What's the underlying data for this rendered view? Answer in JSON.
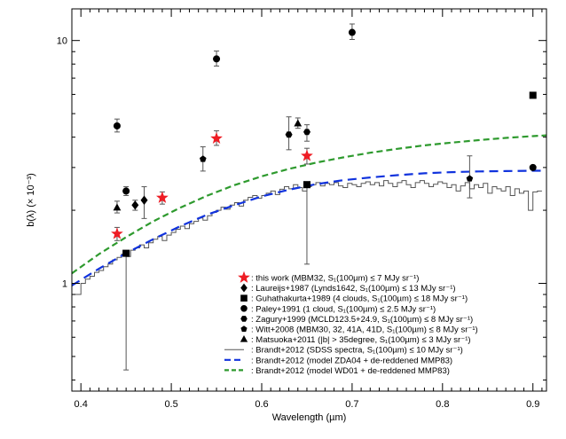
{
  "chart_data": {
    "type": "scatter",
    "xlabel": "Wavelength (µm)",
    "ylabel": "b(λ) (× 10⁻³)",
    "xlim": [
      0.39,
      0.915
    ],
    "ylim": [
      0.36,
      13.5
    ],
    "y_scale": "log",
    "x_ticks": [
      0.4,
      0.5,
      0.6,
      0.7,
      0.8,
      0.9
    ],
    "y_ticks": [
      1,
      10
    ],
    "legend_position": "bottom-right",
    "colors": {
      "red": "#ee1c24",
      "blue": "#1133dd",
      "green": "#2e9a2e",
      "black": "#000000",
      "gray": "#555555"
    },
    "series": [
      {
        "name": "this work",
        "legend": ": this work (MBM32, S₁(100µm) ≤ 7 MJy sr⁻¹)",
        "marker": "star",
        "color": "#ee1c24",
        "points": [
          {
            "x": 0.44,
            "y": 1.6,
            "err": [
              1.5,
              1.7
            ]
          },
          {
            "x": 0.49,
            "y": 2.25,
            "err": [
              2.12,
              2.38
            ]
          },
          {
            "x": 0.55,
            "y": 3.95,
            "err": [
              3.7,
              4.25
            ]
          },
          {
            "x": 0.65,
            "y": 3.35,
            "err": [
              3.1,
              3.6
            ]
          }
        ]
      },
      {
        "name": "Laureijs+1987",
        "legend": ": Laureijs+1987 (Lynds1642, S₁(100µm) ≤ 13 MJy sr⁻¹)",
        "marker": "diamond",
        "color": "#000000",
        "points": [
          {
            "x": 0.46,
            "y": 2.1,
            "err": [
              2.0,
              2.2
            ]
          },
          {
            "x": 0.47,
            "y": 2.2,
            "err": [
              1.85,
              2.5
            ]
          }
        ]
      },
      {
        "name": "Guhathakurta+1989",
        "legend": ": Guhathakurta+1989 (4 clouds, S₁(100µm) ≤ 18 MJy sr⁻¹)",
        "marker": "square",
        "color": "#000000",
        "points": [
          {
            "x": 0.45,
            "y": 1.33,
            "err": [
              0.44,
              1.33
            ]
          },
          {
            "x": 0.65,
            "y": 2.55,
            "err": [
              1.2,
              2.55
            ]
          },
          {
            "x": 0.9,
            "y": 5.95,
            "err": null
          }
        ]
      },
      {
        "name": "Paley+1991",
        "legend": ": Paley+1991 (1 cloud, S₁(100µm) ≤ 2.5 MJy sr⁻¹)",
        "marker": "circle",
        "color": "#000000",
        "points": [
          {
            "x": 0.44,
            "y": 4.45,
            "err": [
              4.2,
              4.75
            ]
          },
          {
            "x": 0.45,
            "y": 2.4,
            "err": [
              2.3,
              2.5
            ]
          },
          {
            "x": 0.55,
            "y": 8.4,
            "err": [
              7.85,
              9.05
            ]
          },
          {
            "x": 0.7,
            "y": 10.8,
            "err": [
              10.1,
              11.7
            ]
          },
          {
            "x": 0.9,
            "y": 3.0,
            "err": null
          }
        ]
      },
      {
        "name": "Zagury+1999",
        "legend": ": Zagury+1999 (MCLD123.5+24.9, S₁(100µm) ≤ 8 MJy sr⁻¹)",
        "marker": "hexagon",
        "color": "#000000",
        "points": [
          {
            "x": 0.63,
            "y": 4.1,
            "err": [
              3.55,
              4.85
            ]
          },
          {
            "x": 0.65,
            "y": 4.2,
            "err": [
              3.85,
              4.5
            ]
          }
        ]
      },
      {
        "name": "Witt+2008",
        "legend": ": Witt+2008 (MBM30, 32, 41A, 41D, S₁(100µm) ≤ 8 MJy sr⁻¹)",
        "marker": "pentagon",
        "color": "#000000",
        "points": [
          {
            "x": 0.535,
            "y": 3.25,
            "err": [
              2.9,
              3.65
            ]
          },
          {
            "x": 0.83,
            "y": 2.7,
            "err": [
              2.25,
              3.35
            ]
          }
        ]
      },
      {
        "name": "Matsuoka+2011",
        "legend": ": Matsuoka+2011 (|b| > 35degree, S₁(100µm) ≤ 3 MJy sr⁻¹)",
        "marker": "triangle",
        "color": "#000000",
        "points": [
          {
            "x": 0.44,
            "y": 2.05,
            "err": [
              1.95,
              2.18
            ]
          },
          {
            "x": 0.64,
            "y": 4.55,
            "err": [
              4.35,
              4.8
            ]
          }
        ]
      }
    ],
    "lines": [
      {
        "name": "Brandt+2012 SDSS",
        "legend": ": Brandt+2012 (SDSS spectra, S₁(100µm) ≤ 10 MJy sr⁻¹)",
        "style": "step",
        "color": "#555555",
        "x": [
          0.39,
          0.4,
          0.405,
          0.41,
          0.415,
          0.42,
          0.425,
          0.43,
          0.435,
          0.44,
          0.445,
          0.45,
          0.455,
          0.46,
          0.465,
          0.47,
          0.475,
          0.48,
          0.485,
          0.49,
          0.495,
          0.5,
          0.505,
          0.51,
          0.515,
          0.52,
          0.525,
          0.53,
          0.535,
          0.54,
          0.545,
          0.55,
          0.555,
          0.56,
          0.565,
          0.57,
          0.575,
          0.58,
          0.585,
          0.59,
          0.595,
          0.6,
          0.605,
          0.61,
          0.615,
          0.62,
          0.625,
          0.63,
          0.635,
          0.64,
          0.645,
          0.65,
          0.655,
          0.66,
          0.665,
          0.67,
          0.675,
          0.68,
          0.685,
          0.69,
          0.695,
          0.7,
          0.705,
          0.71,
          0.715,
          0.72,
          0.725,
          0.73,
          0.735,
          0.74,
          0.745,
          0.75,
          0.755,
          0.76,
          0.765,
          0.77,
          0.775,
          0.78,
          0.785,
          0.79,
          0.795,
          0.8,
          0.805,
          0.81,
          0.815,
          0.82,
          0.825,
          0.83,
          0.835,
          0.84,
          0.845,
          0.85,
          0.855,
          0.86,
          0.865,
          0.87,
          0.875,
          0.88,
          0.885,
          0.89,
          0.895,
          0.9,
          0.905
        ],
        "y": [
          0.9,
          1.0,
          1.04,
          1.07,
          1.11,
          1.13,
          1.17,
          1.2,
          1.25,
          1.28,
          1.32,
          1.29,
          1.37,
          1.4,
          1.44,
          1.4,
          1.47,
          1.52,
          1.56,
          1.5,
          1.58,
          1.62,
          1.67,
          1.72,
          1.68,
          1.76,
          1.8,
          1.86,
          1.82,
          1.9,
          1.96,
          2.0,
          2.06,
          2.02,
          2.1,
          2.15,
          2.08,
          2.2,
          2.26,
          2.3,
          2.24,
          2.3,
          2.35,
          2.4,
          2.32,
          2.44,
          2.5,
          2.45,
          2.55,
          2.48,
          2.4,
          2.5,
          2.55,
          2.6,
          2.52,
          2.58,
          2.55,
          2.6,
          2.52,
          2.48,
          2.58,
          2.55,
          2.5,
          2.58,
          2.62,
          2.55,
          2.6,
          2.52,
          2.65,
          2.58,
          2.5,
          2.6,
          2.65,
          2.55,
          2.48,
          2.6,
          2.65,
          2.58,
          2.5,
          2.56,
          2.62,
          2.58,
          2.48,
          2.55,
          2.4,
          2.52,
          2.6,
          2.45,
          2.55,
          2.48,
          2.58,
          2.35,
          2.5,
          2.45,
          2.4,
          2.5,
          2.3,
          2.45,
          2.35,
          2.4,
          2.0,
          2.38,
          2.4
        ]
      },
      {
        "name": "Brandt+2012 ZDA04",
        "legend": ": Brandt+2012 (model ZDA04 + de-reddened MMP83)",
        "style": "long-dash",
        "color": "#1133dd",
        "x": [
          0.39,
          0.42,
          0.45,
          0.48,
          0.51,
          0.54,
          0.57,
          0.6,
          0.63,
          0.66,
          0.69,
          0.72,
          0.75,
          0.78,
          0.81,
          0.84,
          0.87,
          0.9,
          0.915
        ],
        "y": [
          0.98,
          1.15,
          1.33,
          1.52,
          1.72,
          1.92,
          2.1,
          2.28,
          2.43,
          2.56,
          2.66,
          2.73,
          2.79,
          2.84,
          2.87,
          2.89,
          2.9,
          2.91,
          2.91
        ]
      },
      {
        "name": "Brandt+2012 WD01",
        "legend": ": Brandt+2012 (model WD01 + de-reddened MMP83)",
        "style": "dash",
        "color": "#2e9a2e",
        "x": [
          0.39,
          0.42,
          0.45,
          0.48,
          0.51,
          0.54,
          0.57,
          0.6,
          0.63,
          0.66,
          0.69,
          0.72,
          0.75,
          0.78,
          0.81,
          0.84,
          0.87,
          0.9,
          0.915
        ],
        "y": [
          1.1,
          1.32,
          1.55,
          1.8,
          2.05,
          2.3,
          2.54,
          2.76,
          2.96,
          3.14,
          3.3,
          3.45,
          3.58,
          3.7,
          3.8,
          3.89,
          3.97,
          4.04,
          4.07
        ]
      }
    ]
  }
}
